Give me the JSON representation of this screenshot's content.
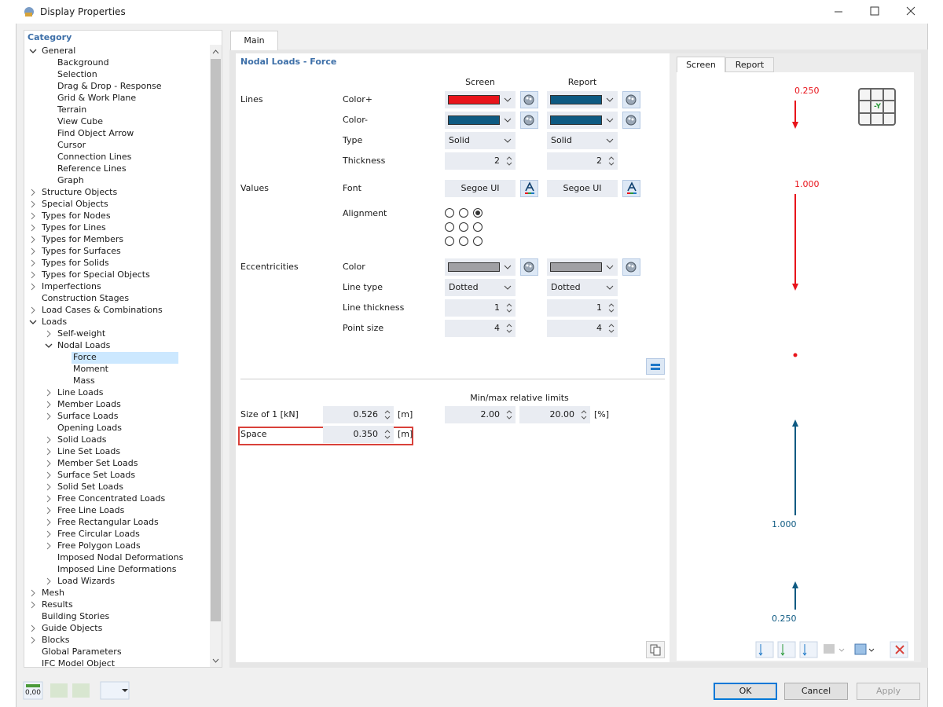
{
  "window": {
    "title": "Display Properties"
  },
  "category": {
    "header": "Category",
    "items": [
      {
        "label": "General",
        "depth": 0,
        "toggle": "open"
      },
      {
        "label": "Background",
        "depth": 1
      },
      {
        "label": "Selection",
        "depth": 1
      },
      {
        "label": "Drag & Drop - Response",
        "depth": 1
      },
      {
        "label": "Grid & Work Plane",
        "depth": 1
      },
      {
        "label": "Terrain",
        "depth": 1
      },
      {
        "label": "View Cube",
        "depth": 1
      },
      {
        "label": "Find Object Arrow",
        "depth": 1
      },
      {
        "label": "Cursor",
        "depth": 1
      },
      {
        "label": "Connection Lines",
        "depth": 1
      },
      {
        "label": "Reference Lines",
        "depth": 1
      },
      {
        "label": "Graph",
        "depth": 1
      },
      {
        "label": "Structure Objects",
        "depth": 0,
        "toggle": "closed"
      },
      {
        "label": "Special Objects",
        "depth": 0,
        "toggle": "closed"
      },
      {
        "label": "Types for Nodes",
        "depth": 0,
        "toggle": "closed"
      },
      {
        "label": "Types for Lines",
        "depth": 0,
        "toggle": "closed"
      },
      {
        "label": "Types for Members",
        "depth": 0,
        "toggle": "closed"
      },
      {
        "label": "Types for Surfaces",
        "depth": 0,
        "toggle": "closed"
      },
      {
        "label": "Types for Solids",
        "depth": 0,
        "toggle": "closed"
      },
      {
        "label": "Types for Special Objects",
        "depth": 0,
        "toggle": "closed"
      },
      {
        "label": "Imperfections",
        "depth": 0,
        "toggle": "closed"
      },
      {
        "label": "Construction Stages",
        "depth": 0
      },
      {
        "label": "Load Cases & Combinations",
        "depth": 0,
        "toggle": "closed"
      },
      {
        "label": "Loads",
        "depth": 0,
        "toggle": "open"
      },
      {
        "label": "Self-weight",
        "depth": 1,
        "toggle": "closed"
      },
      {
        "label": "Nodal Loads",
        "depth": 1,
        "toggle": "open"
      },
      {
        "label": "Force",
        "depth": 2,
        "selected": true
      },
      {
        "label": "Moment",
        "depth": 2
      },
      {
        "label": "Mass",
        "depth": 2
      },
      {
        "label": "Line Loads",
        "depth": 1,
        "toggle": "closed"
      },
      {
        "label": "Member Loads",
        "depth": 1,
        "toggle": "closed"
      },
      {
        "label": "Surface Loads",
        "depth": 1,
        "toggle": "closed"
      },
      {
        "label": "Opening Loads",
        "depth": 1
      },
      {
        "label": "Solid Loads",
        "depth": 1,
        "toggle": "closed"
      },
      {
        "label": "Line Set Loads",
        "depth": 1,
        "toggle": "closed"
      },
      {
        "label": "Member Set Loads",
        "depth": 1,
        "toggle": "closed"
      },
      {
        "label": "Surface Set Loads",
        "depth": 1,
        "toggle": "closed"
      },
      {
        "label": "Solid Set Loads",
        "depth": 1,
        "toggle": "closed"
      },
      {
        "label": "Free Concentrated Loads",
        "depth": 1,
        "toggle": "closed"
      },
      {
        "label": "Free Line Loads",
        "depth": 1,
        "toggle": "closed"
      },
      {
        "label": "Free Rectangular Loads",
        "depth": 1,
        "toggle": "closed"
      },
      {
        "label": "Free Circular Loads",
        "depth": 1,
        "toggle": "closed"
      },
      {
        "label": "Free Polygon Loads",
        "depth": 1,
        "toggle": "closed"
      },
      {
        "label": "Imposed Nodal Deformations",
        "depth": 1
      },
      {
        "label": "Imposed Line Deformations",
        "depth": 1
      },
      {
        "label": "Load Wizards",
        "depth": 1,
        "toggle": "closed"
      },
      {
        "label": "Mesh",
        "depth": 0,
        "toggle": "closed"
      },
      {
        "label": "Results",
        "depth": 0,
        "toggle": "closed"
      },
      {
        "label": "Building Stories",
        "depth": 0
      },
      {
        "label": "Guide Objects",
        "depth": 0,
        "toggle": "closed"
      },
      {
        "label": "Blocks",
        "depth": 0,
        "toggle": "closed"
      },
      {
        "label": "Global Parameters",
        "depth": 0
      },
      {
        "label": "IFC Model Object",
        "depth": 0
      }
    ]
  },
  "main": {
    "tab": "Main",
    "section": "Nodal Loads - Force",
    "columns": [
      "Screen",
      "Report"
    ],
    "groups": [
      {
        "name": "Lines",
        "rows": [
          {
            "label": "Color+",
            "kind": "color",
            "screen": "#e8141b",
            "report": "#0e5a82"
          },
          {
            "label": "Color-",
            "kind": "color",
            "screen": "#0e5a82",
            "report": "#0e5a82"
          },
          {
            "label": "Type",
            "kind": "combo",
            "screen": "Solid",
            "report": "Solid"
          },
          {
            "label": "Thickness",
            "kind": "spin",
            "screen": "2",
            "report": "2"
          }
        ]
      },
      {
        "name": "Values",
        "rows": [
          {
            "label": "Font",
            "kind": "font",
            "screen": "Segoe UI",
            "report": "Segoe UI"
          },
          {
            "label": "Alignment",
            "kind": "align",
            "selected": 2
          }
        ]
      },
      {
        "name": "Eccentricities",
        "rows": [
          {
            "label": "Color",
            "kind": "color",
            "screen": "#a0a0a4",
            "report": "#a0a0a4"
          },
          {
            "label": "Line type",
            "kind": "combo",
            "screen": "Dotted",
            "report": "Dotted"
          },
          {
            "label": "Line thickness",
            "kind": "spin",
            "screen": "1",
            "report": "1"
          },
          {
            "label": "Point size",
            "kind": "spin",
            "screen": "4",
            "report": "4"
          }
        ]
      }
    ],
    "limits": {
      "header": "Min/max relative limits",
      "size": {
        "label": "Size of 1 [kN]",
        "value": "0.526",
        "unit": "[m]",
        "min": "2.00",
        "max": "20.00",
        "limit_unit": "[%]"
      },
      "space": {
        "label": "Space",
        "value": "0.350",
        "unit": "[m]"
      }
    }
  },
  "preview": {
    "tabs": [
      "Screen",
      "Report"
    ],
    "view": "-Y",
    "labels": [
      "0.250",
      "1.000",
      "1.000",
      "0.250"
    ]
  },
  "toolbar": {
    "units": "0,00"
  },
  "buttons": [
    "OK",
    "Cancel",
    "Apply"
  ]
}
